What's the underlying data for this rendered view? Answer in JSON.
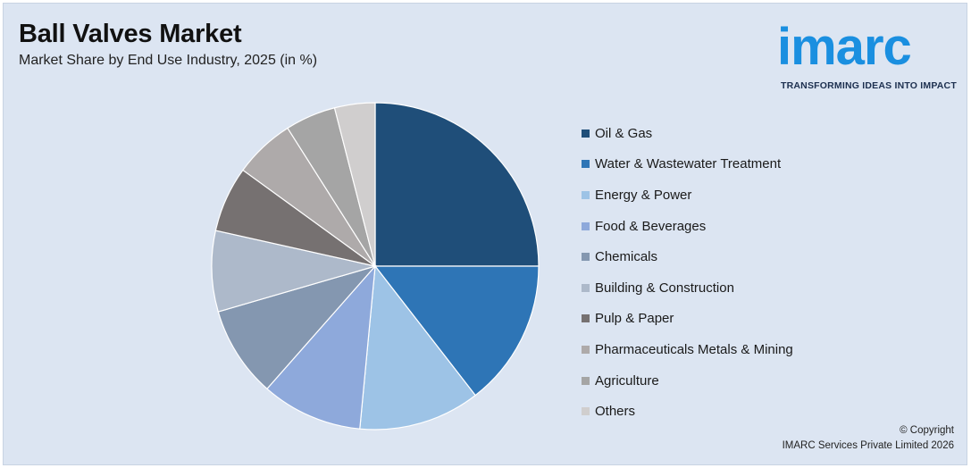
{
  "header": {
    "title": "Ball Valves Market",
    "subtitle": "Market Share by End Use Industry, 2025 (in %)"
  },
  "logo": {
    "wordmark": "imarc",
    "tagline": "TRANSFORMING IDEAS INTO IMPACT",
    "color": "#1a8fe0"
  },
  "chart_data": {
    "type": "pie",
    "title": "Ball Valves Market",
    "subtitle": "Market Share by End Use Industry, 2025 (in %)",
    "legend_position": "right",
    "start_angle_deg": 0,
    "direction": "clockwise",
    "slices": [
      {
        "label": "Oil & Gas",
        "value": 25,
        "color": "#1f4e79"
      },
      {
        "label": "Water & Wastewater Treatment",
        "value": 14.5,
        "color": "#2e75b6"
      },
      {
        "label": "Energy & Power",
        "value": 12,
        "color": "#9dc3e6"
      },
      {
        "label": "Food & Beverages",
        "value": 10,
        "color": "#8ea9db"
      },
      {
        "label": "Chemicals",
        "value": 9,
        "color": "#8497b0"
      },
      {
        "label": "Building & Construction",
        "value": 8,
        "color": "#adb9ca"
      },
      {
        "label": "Pulp & Paper",
        "value": 6.5,
        "color": "#767171"
      },
      {
        "label": "Pharmaceuticals Metals & Mining",
        "value": 6,
        "color": "#aeaaaa"
      },
      {
        "label": "Agriculture",
        "value": 5,
        "color": "#a5a5a5"
      },
      {
        "label": "Others",
        "value": 4,
        "color": "#d0cece"
      }
    ]
  },
  "footer": {
    "copyright_line1": "© Copyright",
    "copyright_line2": "IMARC Services Private Limited 2026"
  }
}
